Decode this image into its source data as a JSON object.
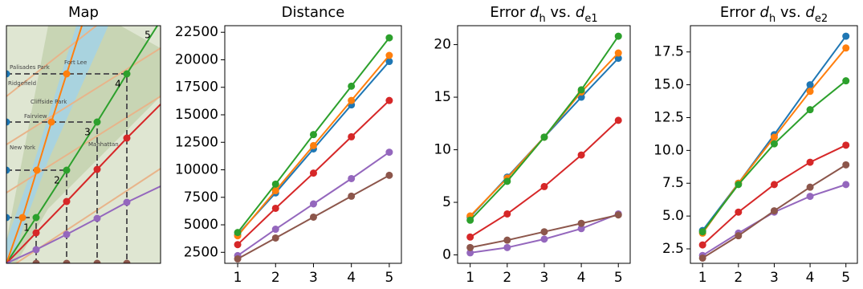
{
  "chart_data": [
    {
      "type": "map",
      "title": "Map",
      "point_labels": [
        "1",
        "2",
        "3",
        "4",
        "5"
      ],
      "place_labels": [
        "Palisades Park",
        "Fort Lee",
        "Ridgefield",
        "Cliffside Park",
        "Fairview",
        "New York",
        "Manhattan"
      ]
    },
    {
      "type": "line",
      "title": [
        {
          "text": "Distance"
        }
      ],
      "x": [
        1,
        2,
        3,
        4,
        5
      ],
      "xlim": [
        0.66,
        5.32
      ],
      "xticks": [
        1,
        2,
        3,
        4,
        5
      ],
      "ylim": [
        1500,
        23100
      ],
      "yticks": [
        2500,
        5000,
        7500,
        10000,
        12500,
        15000,
        17500,
        20000,
        22500
      ],
      "series": [
        {
          "color": "#1f77b4",
          "values": [
            4100,
            7900,
            11900,
            15900,
            19850
          ]
        },
        {
          "color": "#ff7f0e",
          "values": [
            4000,
            8100,
            12200,
            16300,
            20400
          ]
        },
        {
          "color": "#2ca02c",
          "values": [
            4300,
            8700,
            13200,
            17600,
            22000
          ]
        },
        {
          "color": "#d62728",
          "values": [
            3200,
            6500,
            9700,
            13000,
            16300
          ]
        },
        {
          "color": "#9467bd",
          "values": [
            2200,
            4600,
            6900,
            9200,
            11600
          ]
        },
        {
          "color": "#8c564b",
          "values": [
            1900,
            3800,
            5700,
            7600,
            9500
          ]
        }
      ]
    },
    {
      "type": "line",
      "title": [
        {
          "text": "Error "
        },
        {
          "text": "d",
          "italic": true
        },
        {
          "text": "h",
          "sub": true
        },
        {
          "text": " vs. "
        },
        {
          "text": "d",
          "italic": true
        },
        {
          "text": "e1",
          "sub": true
        }
      ],
      "x": [
        1,
        2,
        3,
        4,
        5
      ],
      "xlim": [
        0.66,
        5.32
      ],
      "xticks": [
        1,
        2,
        3,
        4,
        5
      ],
      "ylim": [
        -0.8,
        21.8
      ],
      "yticks": [
        0,
        5,
        10,
        15,
        20
      ],
      "series": [
        {
          "color": "#1f77b4",
          "values": [
            3.6,
            7.4,
            11.2,
            15.0,
            18.7
          ]
        },
        {
          "color": "#ff7f0e",
          "values": [
            3.7,
            7.3,
            11.2,
            15.5,
            19.2
          ]
        },
        {
          "color": "#2ca02c",
          "values": [
            3.3,
            7.0,
            11.2,
            15.7,
            20.8
          ]
        },
        {
          "color": "#d62728",
          "values": [
            1.7,
            3.9,
            6.5,
            9.5,
            12.8
          ]
        },
        {
          "color": "#9467bd",
          "values": [
            0.2,
            0.7,
            1.5,
            2.5,
            3.9
          ]
        },
        {
          "color": "#8c564b",
          "values": [
            0.7,
            1.4,
            2.2,
            3.0,
            3.8
          ]
        }
      ]
    },
    {
      "type": "line",
      "title": [
        {
          "text": "Error "
        },
        {
          "text": "d",
          "italic": true
        },
        {
          "text": "h",
          "sub": true
        },
        {
          "text": " vs. "
        },
        {
          "text": "d",
          "italic": true
        },
        {
          "text": "e2",
          "sub": true
        }
      ],
      "x": [
        1,
        2,
        3,
        4,
        5
      ],
      "xlim": [
        0.66,
        5.32
      ],
      "xticks": [
        1,
        2,
        3,
        4,
        5
      ],
      "ylim": [
        1.4,
        19.5
      ],
      "yticks": [
        2.5,
        {
          "value": 5,
          "label": "5.0"
        },
        7.5,
        {
          "value": 10,
          "label": "10.0"
        },
        12.5,
        {
          "value": 15,
          "label": "15.0"
        },
        17.5
      ],
      "series": [
        {
          "color": "#1f77b4",
          "values": [
            3.9,
            7.5,
            11.2,
            15.0,
            18.7
          ]
        },
        {
          "color": "#ff7f0e",
          "values": [
            3.7,
            7.5,
            11.0,
            14.5,
            17.8
          ]
        },
        {
          "color": "#2ca02c",
          "values": [
            3.8,
            7.4,
            10.5,
            13.1,
            15.3
          ]
        },
        {
          "color": "#d62728",
          "values": [
            2.8,
            5.3,
            7.4,
            9.1,
            10.4
          ]
        },
        {
          "color": "#9467bd",
          "values": [
            2.0,
            3.7,
            5.3,
            6.5,
            7.4
          ]
        },
        {
          "color": "#8c564b",
          "values": [
            1.8,
            3.5,
            5.4,
            7.2,
            8.9
          ]
        }
      ]
    }
  ]
}
